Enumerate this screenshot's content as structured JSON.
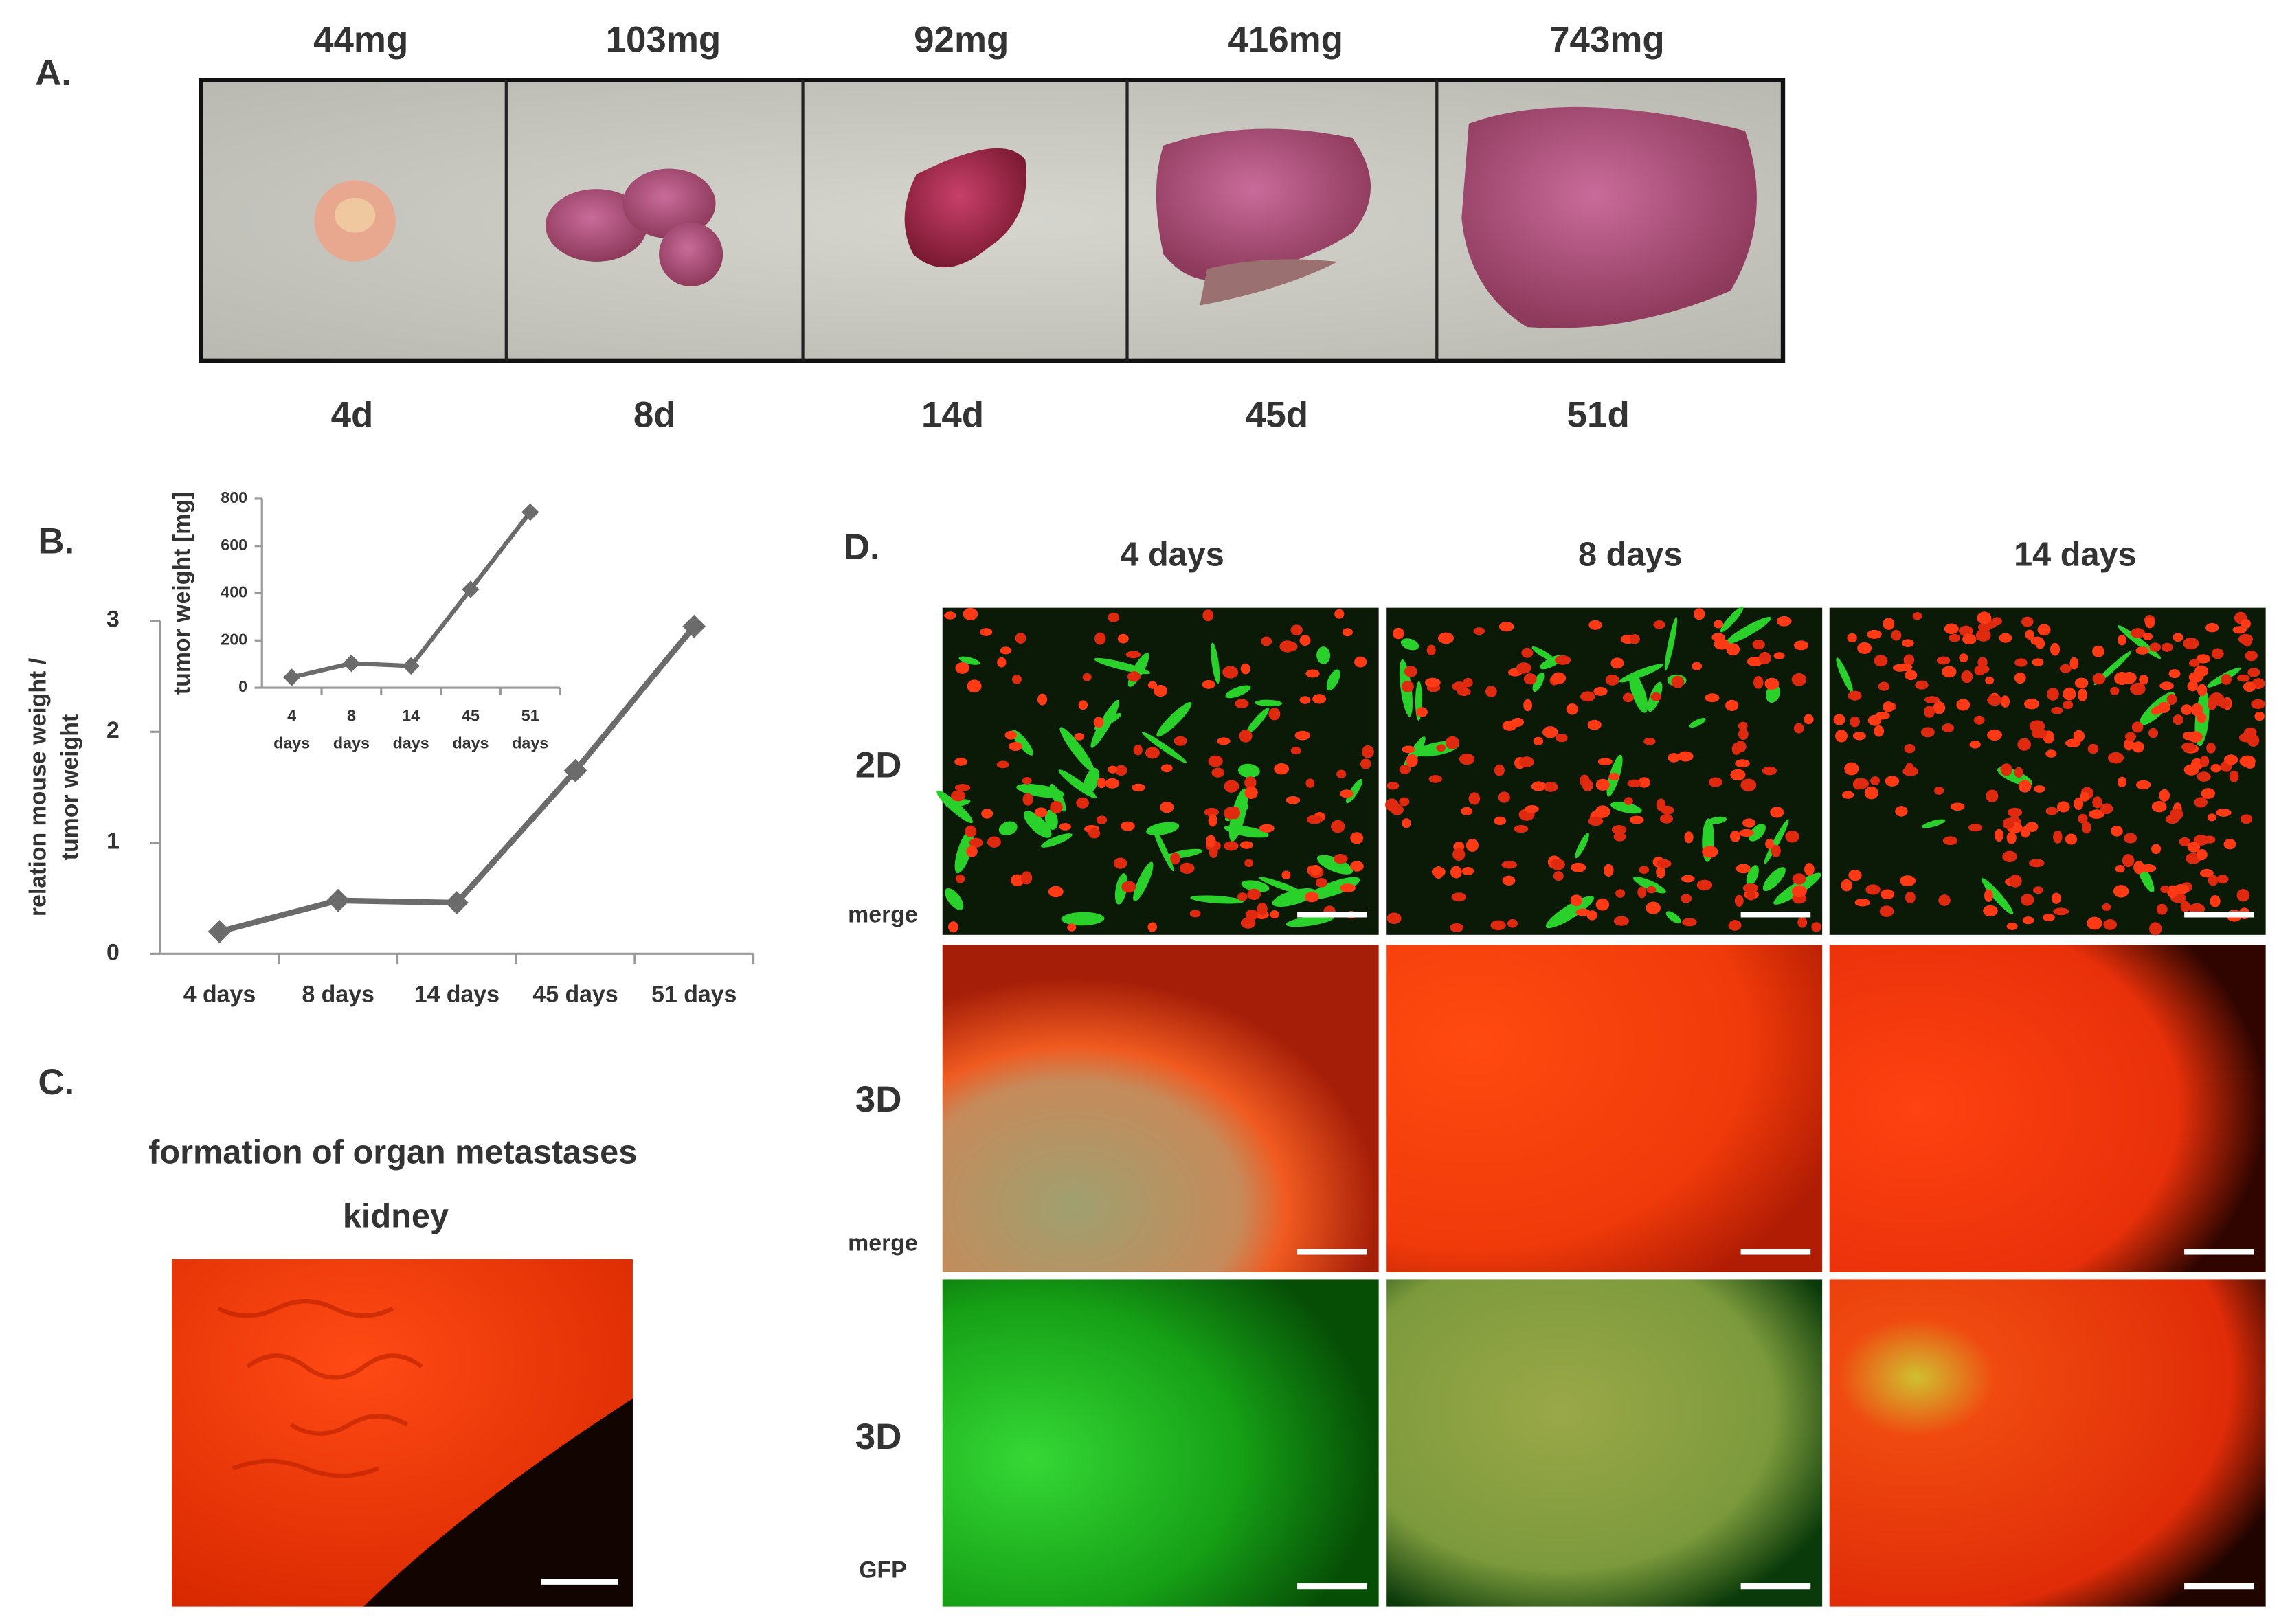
{
  "panels": {
    "a": {
      "label": "A.",
      "weights": [
        "44mg",
        "103mg",
        "92mg",
        "416mg",
        "743mg"
      ],
      "days": [
        "4d",
        "8d",
        "14d",
        "45d",
        "51d"
      ]
    },
    "b": {
      "label": "B."
    },
    "c": {
      "label": "C.",
      "title": "formation of organ metastases",
      "organ": "kidney"
    },
    "d": {
      "label": "D.",
      "columns": [
        "4 days",
        "8 days",
        "14 days"
      ],
      "rows": [
        {
          "dim": "2D",
          "stain": "merge"
        },
        {
          "dim": "3D",
          "stain": "merge"
        },
        {
          "dim": "3D",
          "stain": "GFP"
        }
      ]
    }
  },
  "chart_data": [
    {
      "type": "line",
      "y_label": [
        "relation mouse weight /",
        "tumor weight"
      ],
      "categories": [
        "4 days",
        "8 days",
        "14 days",
        "45 days",
        "51 days"
      ],
      "values": [
        0.2,
        0.48,
        0.46,
        1.65,
        2.95
      ],
      "color": "#6b6b6b",
      "ylim": [
        0,
        3
      ],
      "yticks": [
        0,
        1,
        2,
        3
      ],
      "grid": false
    },
    {
      "type": "line",
      "y_label": [
        "tumor weight [mg]"
      ],
      "categories": [
        "4 days",
        "8 days",
        "14 days",
        "45 days",
        "51 days"
      ],
      "values": [
        44,
        103,
        92,
        416,
        743
      ],
      "color": "#6b6b6b",
      "ylim": [
        0,
        800
      ],
      "yticks": [
        0,
        200,
        400,
        600,
        800
      ],
      "grid": false
    }
  ]
}
